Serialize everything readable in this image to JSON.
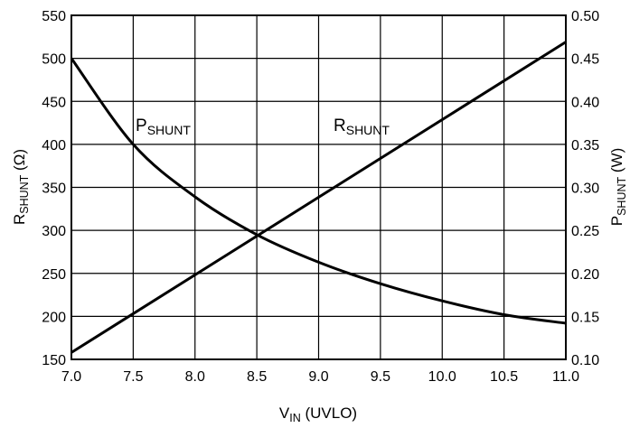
{
  "chart_data": {
    "type": "line",
    "xlabel": {
      "main": "V",
      "sub": "IN",
      "rest": " (UVLO)"
    },
    "ylabel_left": {
      "main": "R",
      "sub": "SHUNT",
      "rest": " (Ω)"
    },
    "ylabel_right": {
      "main": "P",
      "sub": "SHUNT",
      "rest": " (W)"
    },
    "xlim": [
      7.0,
      11.0
    ],
    "ylim_left": [
      150,
      550
    ],
    "ylim_right": [
      0.1,
      0.5
    ],
    "x_ticks": [
      "7.0",
      "7.5",
      "8.0",
      "8.5",
      "9.0",
      "9.5",
      "10.0",
      "10.5",
      "11.0"
    ],
    "y_left_ticks": [
      "150",
      "200",
      "250",
      "300",
      "350",
      "400",
      "450",
      "500",
      "550"
    ],
    "y_right_ticks": [
      "0.10",
      "0.15",
      "0.20",
      "0.25",
      "0.30",
      "0.35",
      "0.40",
      "0.45",
      "0.50"
    ],
    "grid": true,
    "series": [
      {
        "name": {
          "main": "R",
          "sub": "SHUNT"
        },
        "axis": "left",
        "x": [
          7.0,
          11.0
        ],
        "y": [
          158,
          519
        ]
      },
      {
        "name": {
          "main": "P",
          "sub": "SHUNT"
        },
        "axis": "right",
        "x": [
          7.0,
          7.5,
          8.0,
          8.5,
          9.0,
          9.5,
          10.0,
          10.5,
          11.0
        ],
        "y": [
          0.45,
          0.35,
          0.289,
          0.245,
          0.213,
          0.188,
          0.168,
          0.152,
          0.142
        ]
      }
    ],
    "line_color": "#000000"
  }
}
